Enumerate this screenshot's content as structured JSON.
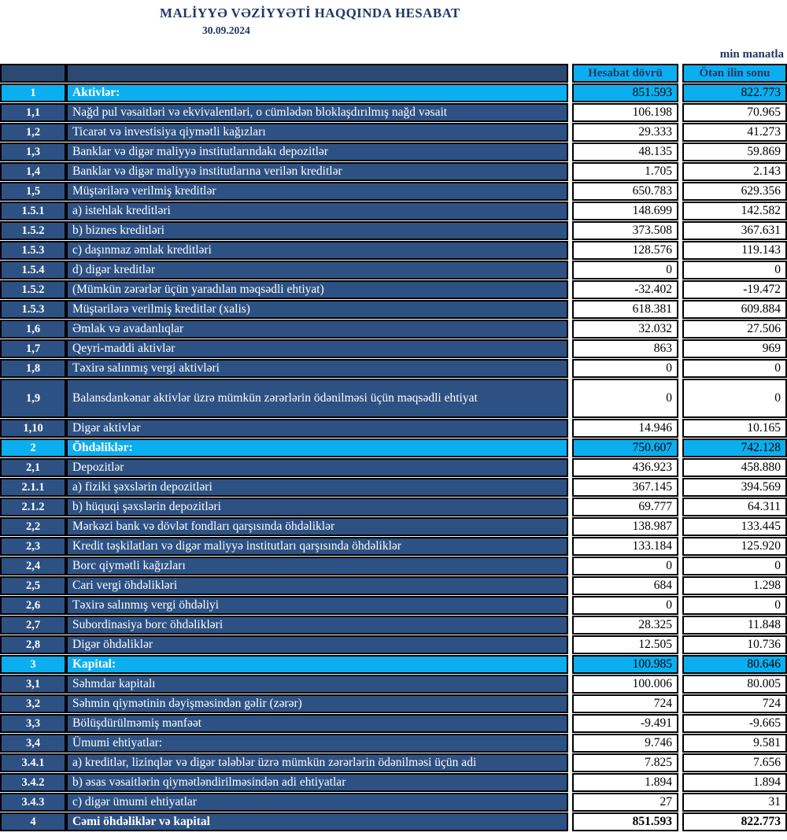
{
  "meta": {
    "title": "MALİYYƏ VƏZİYYƏTİ HAQQINDA HESABAT",
    "date": "30.09.2024",
    "unit_note": "min manatla"
  },
  "colors": {
    "section_highlight": "#0BAEEF",
    "row_background": "#2D5183",
    "header_background": "#2B4A72",
    "heading_text": "#1F3864",
    "border": "#000000"
  },
  "table": {
    "columns": [
      "",
      "",
      "Hesabat dövrü",
      "Ötən ilin sonu"
    ],
    "rows": [
      {
        "no": "1",
        "label": "Aktivlər:",
        "current": "851.593",
        "previous": "822.773",
        "style": "section"
      },
      {
        "no": "1,1",
        "label": "Nağd pul vəsaitləri və  ekvivalentləri, o cümlədən bloklaşdırılmış nağd vəsait",
        "current": "106.198",
        "previous": "70.965",
        "style": "normal"
      },
      {
        "no": "1,2",
        "label": "Ticarət və investisiya qiymətli kağızları",
        "current": "29.333",
        "previous": "41.273",
        "style": "normal"
      },
      {
        "no": "1,3",
        "label": "Banklar və digər maliyyə institutlarındakı depozitlər",
        "current": "48.135",
        "previous": "59.869",
        "style": "normal"
      },
      {
        "no": "1,4",
        "label": "Banklar və digər maliyyə institutlarına verilən kreditlər",
        "current": "1.705",
        "previous": "2.143",
        "style": "normal"
      },
      {
        "no": "1,5",
        "label": "Müştərilərə verilmiş kreditlər",
        "current": "650.783",
        "previous": "629.356",
        "style": "normal"
      },
      {
        "no": "1.5.1",
        "label": "a) istehlak kreditləri",
        "current": "148.699",
        "previous": "142.582",
        "style": "normal"
      },
      {
        "no": "1.5.2",
        "label": "b) biznes kreditləri",
        "current": "373.508",
        "previous": "367.631",
        "style": "normal"
      },
      {
        "no": "1.5.3",
        "label": "c) daşınmaz əmlak kreditləri",
        "current": "128.576",
        "previous": "119.143",
        "style": "normal"
      },
      {
        "no": "1.5.4",
        "label": "d) digər kreditlər",
        "current": "0",
        "previous": "0",
        "style": "normal"
      },
      {
        "no": "1.5.2",
        "label": "(Mümkün zərərlər üçün yaradılan məqsədli ehtiyat)",
        "current": "-32.402",
        "previous": "-19.472",
        "style": "normal"
      },
      {
        "no": "1.5.3",
        "label": "Müştərilərə verilmiş kreditlər (xalis)",
        "current": "618.381",
        "previous": "609.884",
        "style": "normal"
      },
      {
        "no": "1,6",
        "label": "Əmlak və avadanlıqlar",
        "current": "32.032",
        "previous": "27.506",
        "style": "normal"
      },
      {
        "no": "1,7",
        "label": "Qeyri-maddi aktivlər",
        "current": "863",
        "previous": "969",
        "style": "normal"
      },
      {
        "no": "1,8",
        "label": "Təxirə salınmış vergi aktivləri",
        "current": "0",
        "previous": "0",
        "style": "normal"
      },
      {
        "no": "1,9",
        "label": "Balansdankənar aktivlər üzrə mümkün zərərlərin ödənilməsi üçün məqsədli ehtiyat",
        "current": "0",
        "previous": "0",
        "style": "tall"
      },
      {
        "no": "1,10",
        "label": "Digər aktivlər",
        "current": "14.946",
        "previous": "10.165",
        "style": "normal"
      },
      {
        "no": "2",
        "label": "Öhdəliklər:",
        "current": "750.607",
        "previous": "742.128",
        "style": "section"
      },
      {
        "no": "2,1",
        "label": "Depozitlər",
        "current": "436.923",
        "previous": "458.880",
        "style": "normal"
      },
      {
        "no": "2.1.1",
        "label": "a) fiziki şəxslərin depozitləri",
        "current": "367.145",
        "previous": "394.569",
        "style": "normal"
      },
      {
        "no": "2.1.2",
        "label": "b) hüquqi şəxslərin depozitləri",
        "current": "69.777",
        "previous": "64.311",
        "style": "normal"
      },
      {
        "no": "2,2",
        "label": "Mərkəzi bank və dövlət fondları qarşısında öhdəliklər",
        "current": "138.987",
        "previous": "133.445",
        "style": "normal"
      },
      {
        "no": "2,3",
        "label": "Kredit təşkilatları və digər maliyyə institutları qarşısında öhdəliklər",
        "current": "133.184",
        "previous": "125.920",
        "style": "normal"
      },
      {
        "no": "2,4",
        "label": "Borc qiymətli kağızları",
        "current": "0",
        "previous": "0",
        "style": "normal"
      },
      {
        "no": "2,5",
        "label": "Cari vergi öhdəlikləri",
        "current": "684",
        "previous": "1.298",
        "style": "normal"
      },
      {
        "no": "2,6",
        "label": "Təxirə salınmış vergi öhdəliyi",
        "current": "0",
        "previous": "0",
        "style": "normal"
      },
      {
        "no": "2,7",
        "label": "Subordinasiya borc öhdəlikləri",
        "current": "28.325",
        "previous": "11.848",
        "style": "normal"
      },
      {
        "no": "2,8",
        "label": "Digər öhdəliklər",
        "current": "12.505",
        "previous": "10.736",
        "style": "normal"
      },
      {
        "no": "3",
        "label": "Kapital:",
        "current": "100.985",
        "previous": "80.646",
        "style": "section"
      },
      {
        "no": "3,1",
        "label": "Səhmdar kapitalı",
        "current": "100.006",
        "previous": "80.005",
        "style": "normal"
      },
      {
        "no": "3,2",
        "label": "Səhmin qiymətinin dəyişməsindən gəlir (zərər)",
        "current": "724",
        "previous": "724",
        "style": "normal"
      },
      {
        "no": "3,3",
        "label": "Bölüşdürülməmiş mənfəət",
        "current": "-9.491",
        "previous": "-9.665",
        "style": "normal"
      },
      {
        "no": "3,4",
        "label": "Ümumi ehtiyatlar:",
        "current": "9.746",
        "previous": "9.581",
        "style": "normal"
      },
      {
        "no": "3.4.1",
        "label": "a) kreditlər, lizinqlər və digər tələblər üzrə mümkün zərərlərin ödənilməsi üçün adi",
        "current": "7.825",
        "previous": "7.656",
        "style": "normal"
      },
      {
        "no": "3.4.2",
        "label": "b) əsas vəsaitlərin qiymətləndirilməsindən adi ehtiyatlar",
        "current": "1.894",
        "previous": "1.894",
        "style": "normal"
      },
      {
        "no": "3.4.3",
        "label": "c) digər ümumi ehtiyatlar",
        "current": "27",
        "previous": "31",
        "style": "normal"
      },
      {
        "no": "4",
        "label": "Cəmi öhdəliklər və kapital",
        "current": "851.593",
        "previous": "822.773",
        "style": "total"
      }
    ]
  }
}
